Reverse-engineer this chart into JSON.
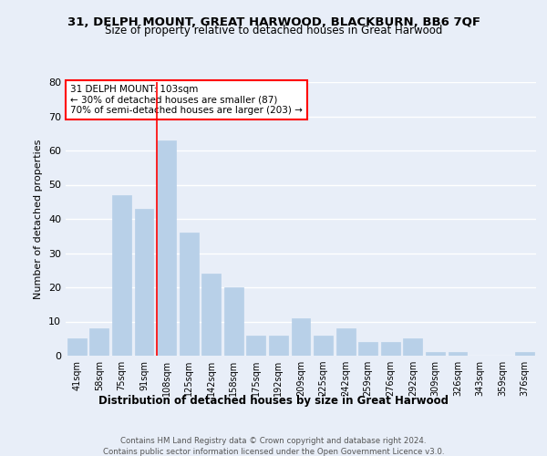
{
  "title1": "31, DELPH MOUNT, GREAT HARWOOD, BLACKBURN, BB6 7QF",
  "title2": "Size of property relative to detached houses in Great Harwood",
  "xlabel": "Distribution of detached houses by size in Great Harwood",
  "ylabel": "Number of detached properties",
  "categories": [
    "41sqm",
    "58sqm",
    "75sqm",
    "91sqm",
    "108sqm",
    "125sqm",
    "142sqm",
    "158sqm",
    "175sqm",
    "192sqm",
    "209sqm",
    "225sqm",
    "242sqm",
    "259sqm",
    "276sqm",
    "292sqm",
    "309sqm",
    "326sqm",
    "343sqm",
    "359sqm",
    "376sqm"
  ],
  "values": [
    5,
    8,
    47,
    43,
    63,
    36,
    24,
    20,
    6,
    6,
    11,
    6,
    8,
    4,
    4,
    5,
    1,
    1,
    0,
    0,
    1
  ],
  "bar_color": "#b8d0e8",
  "bar_edge_color": "#b8d0e8",
  "vline_color": "red",
  "vline_x": 3.575,
  "annotation_text": "31 DELPH MOUNT: 103sqm\n← 30% of detached houses are smaller (87)\n70% of semi-detached houses are larger (203) →",
  "annotation_box_facecolor": "white",
  "annotation_box_edgecolor": "red",
  "ylim": [
    0,
    80
  ],
  "yticks": [
    0,
    10,
    20,
    30,
    40,
    50,
    60,
    70,
    80
  ],
  "background_color": "#e8eef8",
  "grid_color": "white",
  "footer1": "Contains HM Land Registry data © Crown copyright and database right 2024.",
  "footer2": "Contains public sector information licensed under the Open Government Licence v3.0."
}
